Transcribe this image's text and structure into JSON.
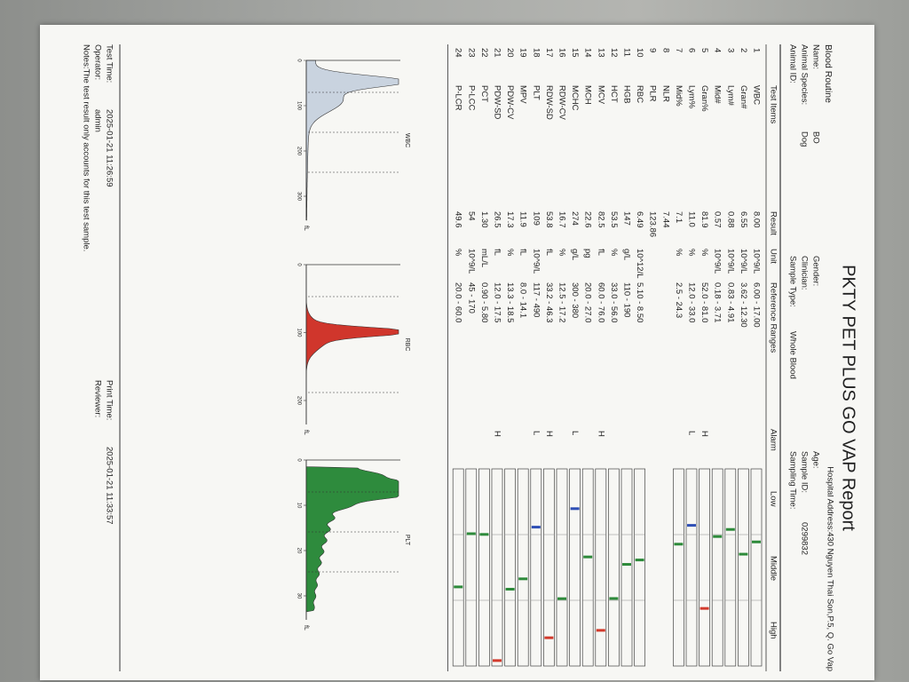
{
  "header": {
    "title": "PKTY PET PLUS GO VAP Report",
    "hospital_address": "Hospital Address:430 Nguyen Thai Son,P.5, Q. Go Vap",
    "section": "Blood Routine"
  },
  "info": [
    {
      "label": "Name:",
      "value": "BO"
    },
    {
      "label": "Animal Species:",
      "value": "Dog"
    },
    {
      "label": "Animal ID:"
    },
    {
      "label": "Gender:"
    },
    {
      "label": "Clinician:"
    },
    {
      "label": "Sample Type:",
      "value": "Whole Blood"
    },
    {
      "label": "Age:"
    },
    {
      "label": "Sample ID:",
      "value": "0299832"
    },
    {
      "label": "Sampling Time:"
    }
  ],
  "table": {
    "columns": [
      "Test Items",
      "Result",
      "Unit",
      "Reference Ranges",
      "Alarm",
      "Low",
      "Middle",
      "High"
    ],
    "rows": [
      {
        "no": "1",
        "item": "WBC",
        "result": "8.00",
        "unit": "10^9/L",
        "range": "6.00 - 17.00"
      },
      {
        "no": "2",
        "item": "Gran#",
        "result": "6.55",
        "unit": "10^9/L",
        "range": "3.62 - 12.30"
      },
      {
        "no": "3",
        "item": "Lym#",
        "result": "0.88",
        "unit": "10^9/L",
        "range": "0.83 - 4.91"
      },
      {
        "no": "4",
        "item": "Mid#",
        "result": "0.57",
        "unit": "10^9/L",
        "range": "0.18 - 3.71"
      },
      {
        "no": "5",
        "item": "Gran%",
        "result": "81.9",
        "unit": "%",
        "range": "52.0 - 81.0",
        "alarm": "H"
      },
      {
        "no": "6",
        "item": "Lym%",
        "result": "11.0",
        "unit": "%",
        "range": "12.0 - 33.0",
        "alarm": "L"
      },
      {
        "no": "7",
        "item": "Mid%",
        "result": "7.1",
        "unit": "%",
        "range": "2.5 - 24.3"
      },
      {
        "no": "8",
        "item": "NLR",
        "result": "7.44"
      },
      {
        "no": "9",
        "item": "PLR",
        "result": "123.86"
      },
      {
        "no": "10",
        "item": "RBC",
        "result": "6.49",
        "unit": "10^12/L",
        "range": "5.10 - 8.50"
      },
      {
        "no": "11",
        "item": "HGB",
        "result": "147",
        "unit": "g/L",
        "range": "110 - 190"
      },
      {
        "no": "12",
        "item": "HCT",
        "result": "53.5",
        "unit": "%",
        "range": "33.0 - 56.0"
      },
      {
        "no": "13",
        "item": "MCV",
        "result": "82.5",
        "unit": "fL",
        "range": "60.0 - 76.0",
        "alarm": "H"
      },
      {
        "no": "14",
        "item": "MCH",
        "result": "22.6",
        "unit": "pg",
        "range": "20.0 - 27.0"
      },
      {
        "no": "15",
        "item": "MCHC",
        "result": "274",
        "unit": "g/L",
        "range": "300 - 380",
        "alarm": "L"
      },
      {
        "no": "16",
        "item": "RDW-CV",
        "result": "16.7",
        "unit": "%",
        "range": "12.5 - 17.2"
      },
      {
        "no": "17",
        "item": "RDW-SD",
        "result": "53.8",
        "unit": "fL",
        "range": "33.2 - 46.3",
        "alarm": "H"
      },
      {
        "no": "18",
        "item": "PLT",
        "result": "109",
        "unit": "10^9/L",
        "range": "117 - 490",
        "alarm": "L"
      },
      {
        "no": "19",
        "item": "MPV",
        "result": "11.9",
        "unit": "fL",
        "range": "8.0 - 14.1"
      },
      {
        "no": "20",
        "item": "PDW-CV",
        "result": "17.3",
        "unit": "%",
        "range": "13.3 - 18.5"
      },
      {
        "no": "21",
        "item": "PDW-SD",
        "result": "26.5",
        "unit": "fL",
        "range": "12.0 - 17.5",
        "alarm": "H"
      },
      {
        "no": "22",
        "item": "PCT",
        "result": "1.30",
        "unit": "mL/L",
        "range": "0.90 - 5.80"
      },
      {
        "no": "23",
        "item": "P-LCC",
        "result": "54",
        "unit": "10^9/L",
        "range": "45 - 170"
      },
      {
        "no": "24",
        "item": "P-LCR",
        "result": "49.6",
        "unit": "%",
        "range": "20.0 - 60.0"
      }
    ]
  },
  "histograms": [
    {
      "label": "WBC",
      "axis": [
        "0",
        "100",
        "200",
        "300"
      ],
      "unit": "fL"
    },
    {
      "label": "RBC",
      "axis": [
        "0",
        "100",
        "200"
      ],
      "unit": "fL"
    },
    {
      "label": "PLT",
      "axis": [
        "0",
        "10",
        "20",
        "30"
      ],
      "unit": "fL"
    }
  ],
  "footer": {
    "test_time": {
      "label": "Test Time:",
      "value": "2025-01-21 11:26:59"
    },
    "print_time": {
      "label": "Print Time:",
      "value": "2025-01-21 11:33:57"
    },
    "operator": {
      "label": "Operator:",
      "value": "admin"
    },
    "reviewer": {
      "label": "Reviewer:"
    },
    "notes": "Notes:The test result only accounts for this test sample."
  }
}
